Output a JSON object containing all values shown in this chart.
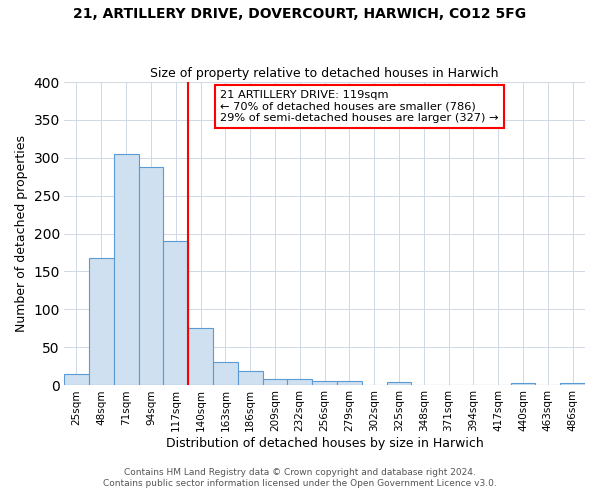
{
  "title": "21, ARTILLERY DRIVE, DOVERCOURT, HARWICH, CO12 5FG",
  "subtitle": "Size of property relative to detached houses in Harwich",
  "xlabel": "Distribution of detached houses by size in Harwich",
  "ylabel": "Number of detached properties",
  "bar_labels": [
    "25sqm",
    "48sqm",
    "71sqm",
    "94sqm",
    "117sqm",
    "140sqm",
    "163sqm",
    "186sqm",
    "209sqm",
    "232sqm",
    "256sqm",
    "279sqm",
    "302sqm",
    "325sqm",
    "348sqm",
    "371sqm",
    "394sqm",
    "417sqm",
    "440sqm",
    "463sqm",
    "486sqm"
  ],
  "bar_values": [
    15,
    168,
    305,
    288,
    190,
    76,
    31,
    19,
    8,
    8,
    5,
    5,
    0,
    4,
    0,
    0,
    0,
    0,
    3,
    0,
    3
  ],
  "bar_color": "#cfe0f0",
  "bar_edge_color": "#5b9bd5",
  "grid_color": "#d0d8e4",
  "vline_color": "red",
  "annotation_title": "21 ARTILLERY DRIVE: 119sqm",
  "annotation_line1": "← 70% of detached houses are smaller (786)",
  "annotation_line2": "29% of semi-detached houses are larger (327) →",
  "annotation_box_color": "white",
  "annotation_box_edge": "red",
  "footer1": "Contains HM Land Registry data © Crown copyright and database right 2024.",
  "footer2": "Contains public sector information licensed under the Open Government Licence v3.0.",
  "ylim": [
    0,
    400
  ],
  "figsize": [
    6.0,
    5.0
  ],
  "dpi": 100
}
